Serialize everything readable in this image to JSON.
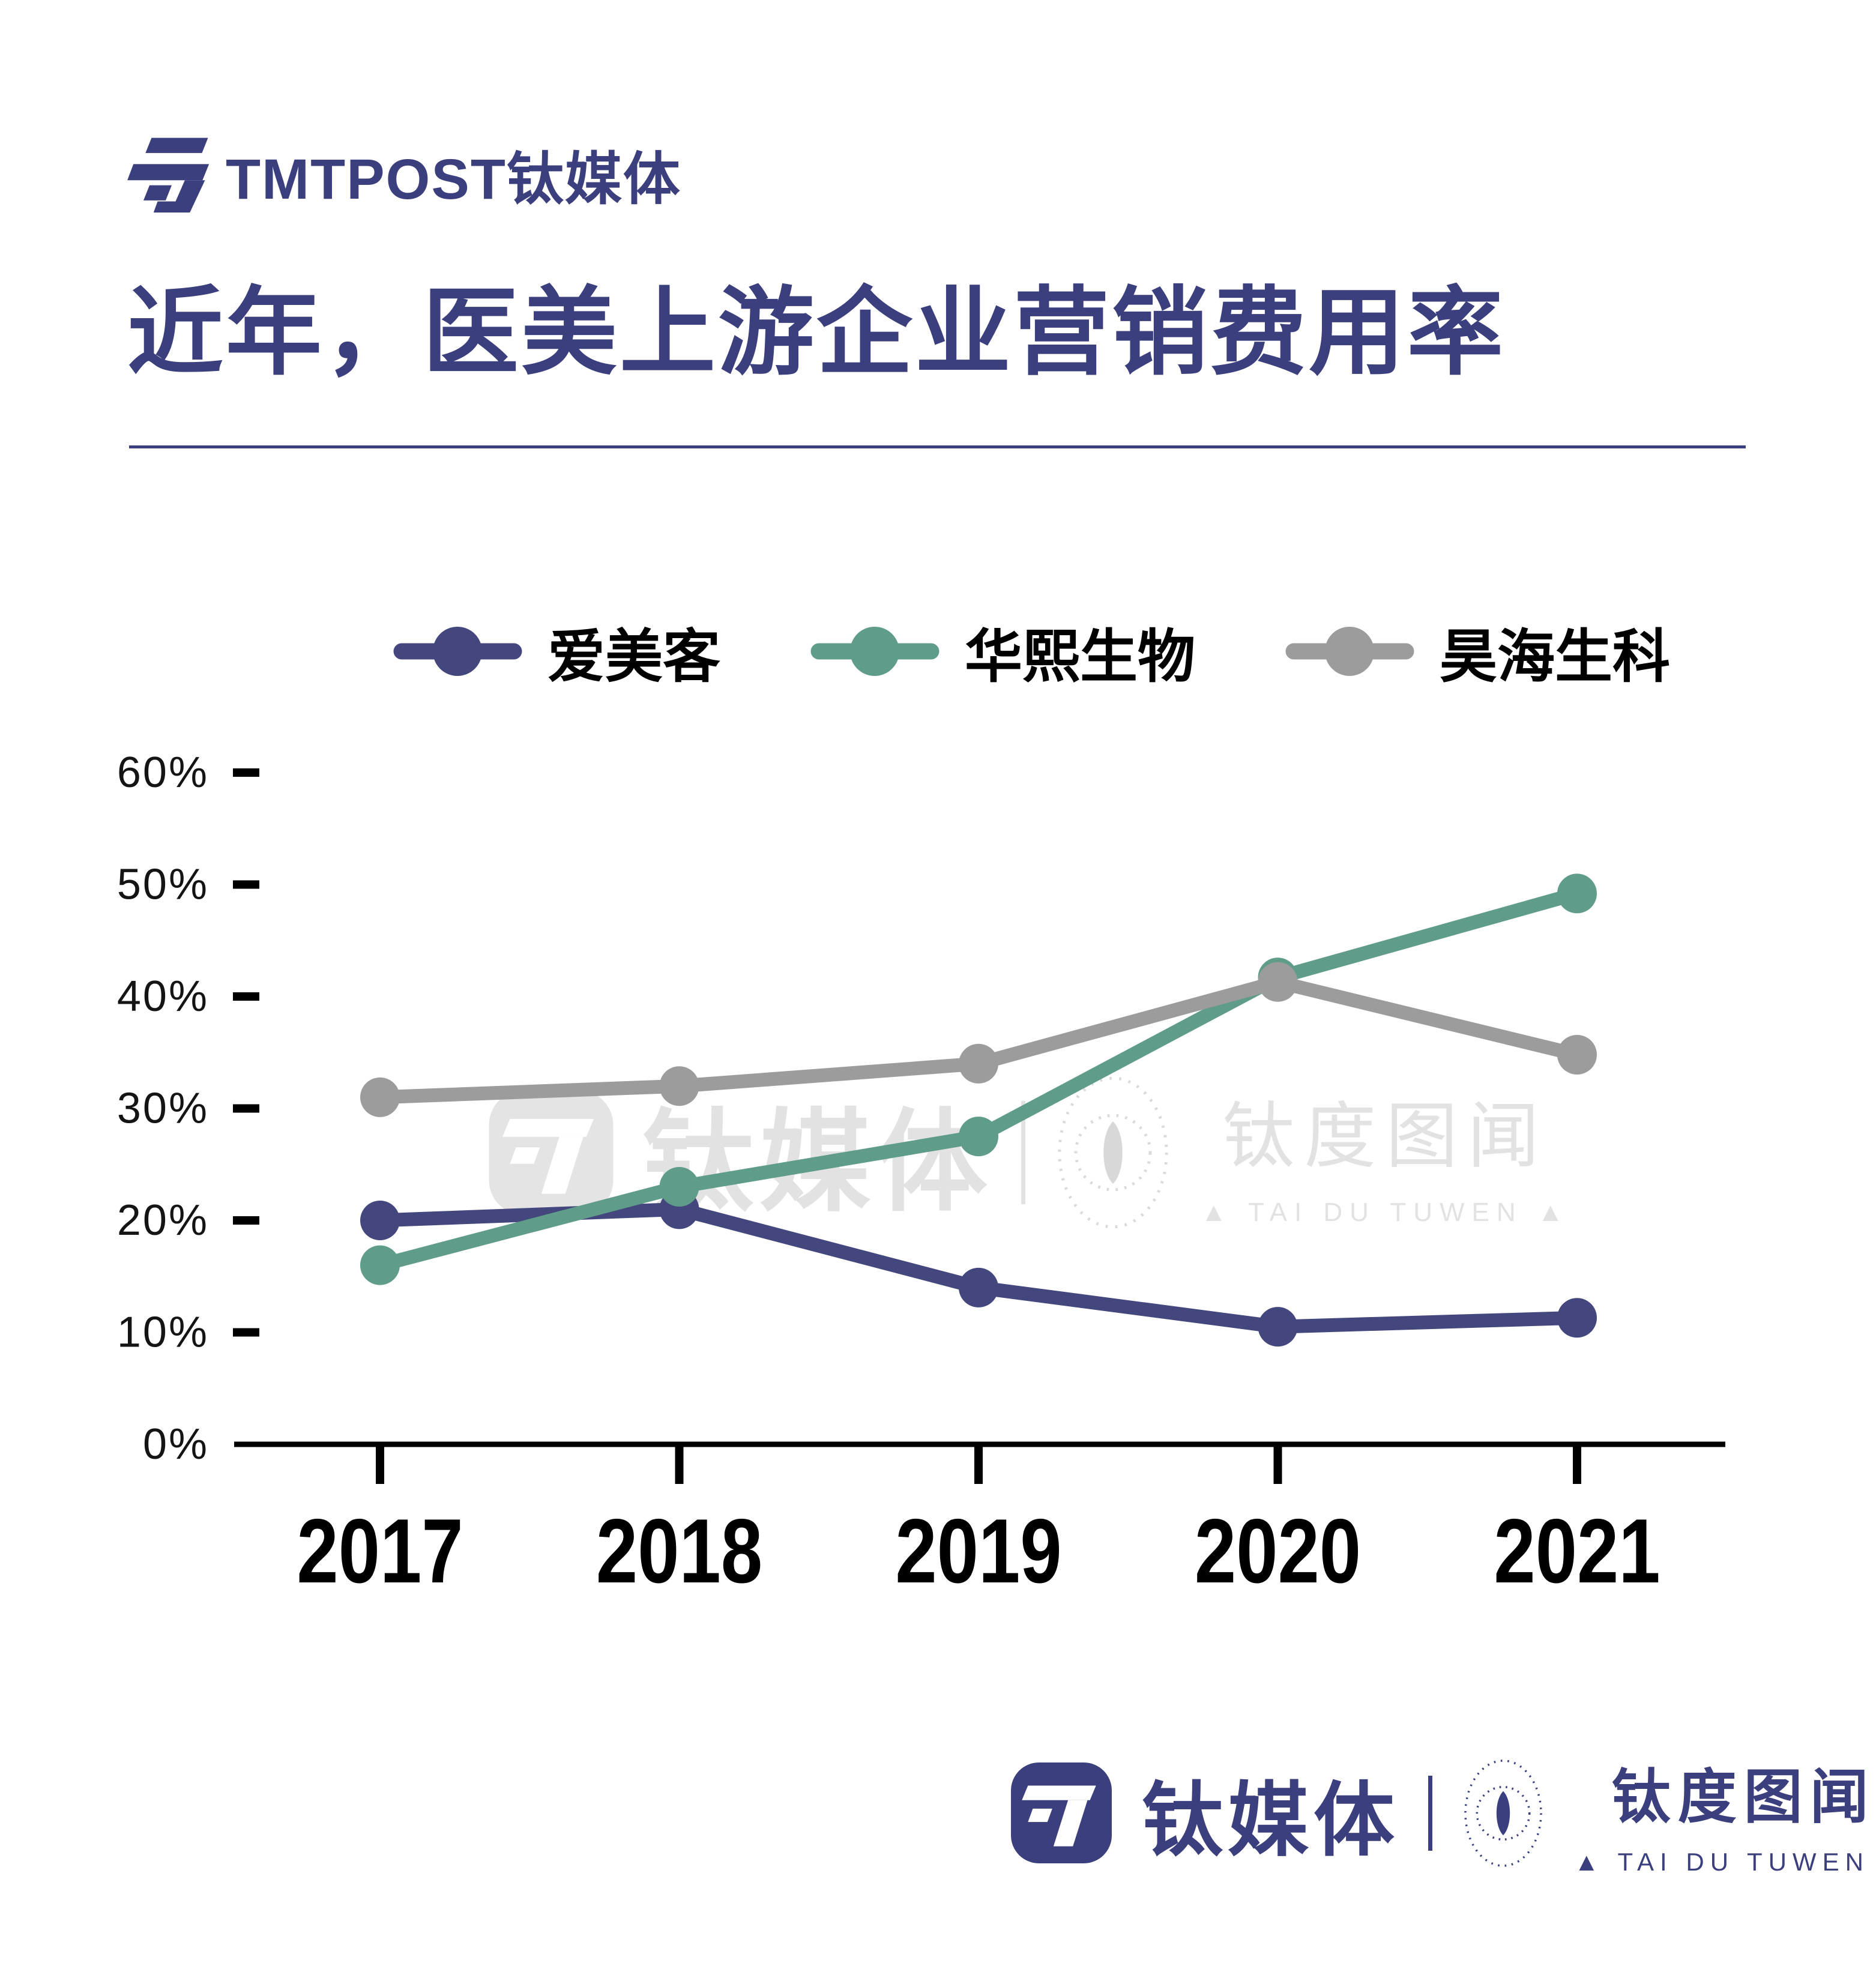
{
  "header": {
    "logo_text": "TMTPOST钛媒体"
  },
  "title": {
    "text": "近年，医美上游企业营销费用率"
  },
  "chart_data": {
    "type": "line",
    "title": "近年，医美上游企业营销费用率",
    "categories": [
      "2017",
      "2018",
      "2019",
      "2020",
      "2021"
    ],
    "series": [
      {
        "name": "爱美客",
        "color": "#44477D",
        "values": [
          20,
          21,
          14,
          10.5,
          11.3
        ]
      },
      {
        "name": "华熙生物",
        "color": "#5F9C8A",
        "values": [
          16,
          23,
          27.5,
          41.7,
          49.2
        ]
      },
      {
        "name": "昊海生科",
        "color": "#9C9C9C",
        "values": [
          31,
          32,
          34,
          41.3,
          34.8
        ]
      }
    ],
    "unit": "%",
    "yticks": [
      0,
      10,
      20,
      30,
      40,
      50,
      60
    ],
    "ytick_labels": [
      "0%",
      "10%",
      "20%",
      "30%",
      "40%",
      "50%",
      "60%"
    ],
    "ylim": [
      0,
      62
    ],
    "xlabel": "",
    "ylabel": "",
    "grid": false,
    "legend_position": "top"
  },
  "watermark": {
    "tmt_text": "钛媒体",
    "taidu_text": "钛度图闻",
    "taidu_sub": "▲ TAI DU TUWEN ▲"
  },
  "footer": {
    "tmt_text": "钛媒体",
    "taidu_text": "钛度图闻",
    "taidu_sub": "▲ TAI DU TUWEN ▲"
  },
  "colors": {
    "brand_navy": "#3B3F7E",
    "series_navy": "#44477D",
    "series_teal": "#5F9C8A",
    "series_gray": "#9C9C9C",
    "watermark_gray": "#E2E2E2",
    "axis_black": "#000000"
  }
}
